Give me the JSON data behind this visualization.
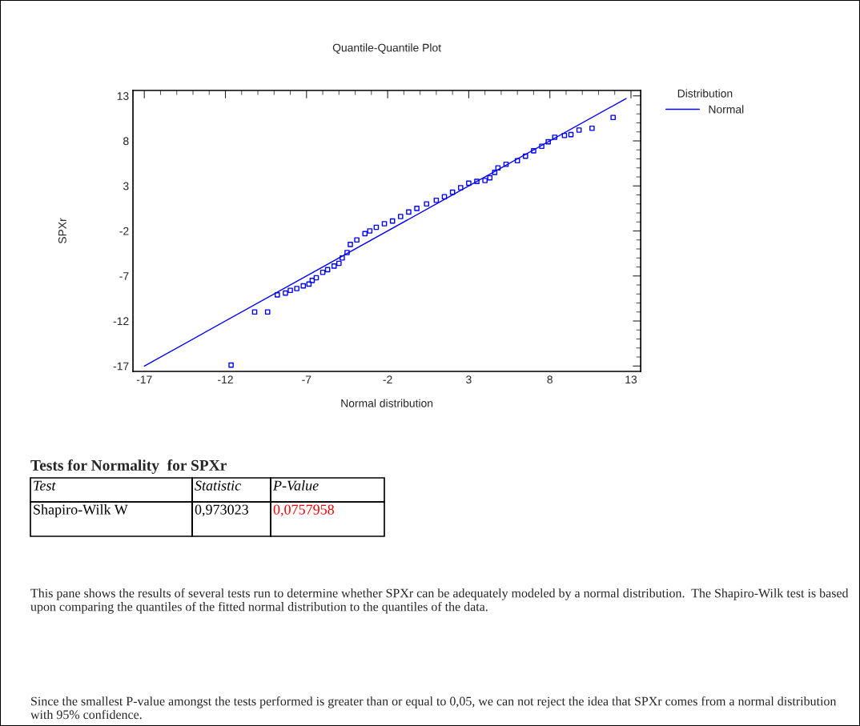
{
  "chart_data": {
    "type": "scatter",
    "title": "Quantile-Quantile Plot",
    "xlabel": "Normal distribution",
    "ylabel": "SPXr",
    "xlim": [
      -17.7,
      13.6
    ],
    "ylim": [
      -17.6,
      13.6
    ],
    "xticks": [
      -17,
      -12,
      -7,
      -2,
      3,
      8,
      13
    ],
    "yticks": [
      -17,
      -12,
      -7,
      -2,
      3,
      8,
      13
    ],
    "grid": false,
    "legend": "top right",
    "legend_title": "Distribution",
    "series": [
      {
        "marker": "square",
        "color": "#0000ff",
        "x": [
          -11.65,
          -10.2,
          -9.4,
          -8.8,
          -8.3,
          -8.0,
          -7.6,
          -7.2,
          -6.85,
          -6.65,
          -6.4,
          -6.0,
          -5.7,
          -5.3,
          -5.0,
          -4.8,
          -4.5,
          -4.3,
          -3.9,
          -3.4,
          -3.1,
          -2.7,
          -2.2,
          -1.7,
          -1.2,
          -0.7,
          -0.2,
          0.4,
          1.0,
          1.5,
          2.0,
          2.5,
          3.0,
          3.5,
          4.0,
          4.3,
          4.6,
          4.8,
          5.3,
          6.0,
          6.5,
          7.0,
          7.5,
          7.9,
          8.3,
          8.9,
          9.3,
          9.8,
          10.6,
          11.9
        ],
        "values": [
          -16.9,
          -11.0,
          -11.0,
          -9.1,
          -8.9,
          -8.6,
          -8.4,
          -8.1,
          -7.9,
          -7.5,
          -7.2,
          -6.6,
          -6.3,
          -5.9,
          -5.6,
          -5.0,
          -4.4,
          -3.5,
          -3.0,
          -2.3,
          -2.0,
          -1.6,
          -1.2,
          -0.9,
          -0.4,
          0.1,
          0.5,
          1.0,
          1.4,
          1.8,
          2.3,
          2.8,
          3.3,
          3.5,
          3.6,
          3.9,
          4.5,
          5.0,
          5.4,
          5.8,
          6.3,
          6.9,
          7.4,
          7.9,
          8.4,
          8.6,
          8.7,
          9.2,
          9.4,
          10.6
        ]
      },
      {
        "type": "line",
        "name": "Normal",
        "color": "#0000ff",
        "x": [
          -17,
          12.7
        ],
        "values": [
          -17,
          12.7
        ]
      }
    ],
    "annotations": [
      "Tests for Normality  for SPXr",
      "Test",
      "Statistic",
      "P-Value",
      "Shapiro-Wilk W",
      "0,973023",
      "0,0757958",
      "This pane shows the results of several tests run to determine whether SPXr can be adequately modeled by a normal distribution.  The Shapiro-Wilk test is based upon comparing the quantiles of the fitted normal distribution to the quantiles of the data.",
      "Since the smallest P-value amongst the tests performed is greater than or equal to 0,05, we can not reject the idea that SPXr comes from a normal distribution with 95% confidence."
    ]
  }
}
